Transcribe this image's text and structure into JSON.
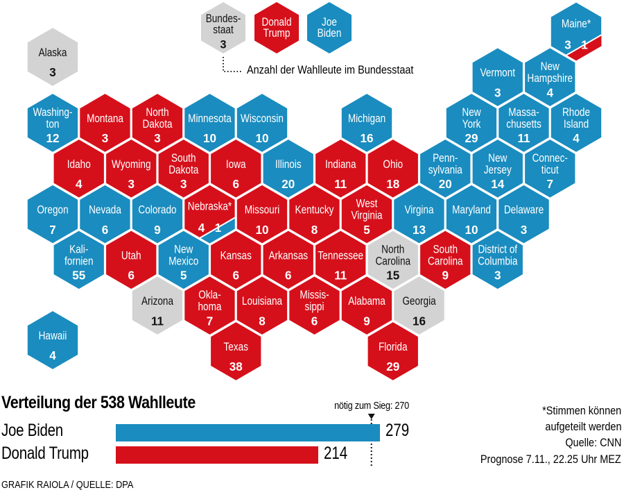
{
  "colors": {
    "trump": "#d5101b",
    "biden": "#1a8cbf",
    "open": "#d3d3d3",
    "text_light": "#ffffff",
    "text_dark": "#111111"
  },
  "legend": {
    "state": {
      "lines": [
        "Bundes-",
        "staat"
      ],
      "votes": "3"
    },
    "trump": {
      "lines": [
        "Donald",
        "Trump"
      ]
    },
    "biden": {
      "lines": [
        "Joe",
        "Biden"
      ]
    },
    "note": "Anzahl der Wahlleute im Bundesstaat"
  },
  "states": [
    {
      "id": "AK",
      "lines": [
        "Alaska"
      ],
      "votes": "3",
      "winner": "open"
    },
    {
      "id": "HI",
      "lines": [
        "Hawaii"
      ],
      "votes": "4",
      "winner": "biden"
    },
    {
      "id": "ME",
      "lines": [
        "Maine*"
      ],
      "winner": "biden",
      "split": {
        "main": "3",
        "other": "1",
        "other_winner": "trump"
      }
    },
    {
      "id": "VT",
      "lines": [
        "Vermont"
      ],
      "votes": "3",
      "winner": "biden"
    },
    {
      "id": "NH",
      "lines": [
        "New",
        "Hampshire"
      ],
      "votes": "4",
      "winner": "biden"
    },
    {
      "id": "WA",
      "lines": [
        "Washing-",
        "ton"
      ],
      "votes": "12",
      "winner": "biden"
    },
    {
      "id": "MT",
      "lines": [
        "Montana"
      ],
      "votes": "3",
      "winner": "trump"
    },
    {
      "id": "ND",
      "lines": [
        "North",
        "Dakota"
      ],
      "votes": "3",
      "winner": "trump"
    },
    {
      "id": "MN",
      "lines": [
        "Minnesota"
      ],
      "votes": "10",
      "winner": "biden"
    },
    {
      "id": "WI",
      "lines": [
        "Wisconsin"
      ],
      "votes": "10",
      "winner": "biden"
    },
    {
      "id": "MI",
      "lines": [
        "Michigan"
      ],
      "votes": "16",
      "winner": "biden"
    },
    {
      "id": "NY",
      "lines": [
        "New",
        "York"
      ],
      "votes": "29",
      "winner": "biden"
    },
    {
      "id": "MA",
      "lines": [
        "Massa-",
        "chusetts"
      ],
      "votes": "11",
      "winner": "biden"
    },
    {
      "id": "RI",
      "lines": [
        "Rhode",
        "Island"
      ],
      "votes": "4",
      "winner": "biden"
    },
    {
      "id": "ID",
      "lines": [
        "Idaho"
      ],
      "votes": "4",
      "winner": "trump"
    },
    {
      "id": "WY",
      "lines": [
        "Wyoming"
      ],
      "votes": "3",
      "winner": "trump"
    },
    {
      "id": "SD",
      "lines": [
        "South",
        "Dakota"
      ],
      "votes": "3",
      "winner": "trump"
    },
    {
      "id": "IA",
      "lines": [
        "Iowa"
      ],
      "votes": "6",
      "winner": "trump"
    },
    {
      "id": "IL",
      "lines": [
        "Illinois"
      ],
      "votes": "20",
      "winner": "biden"
    },
    {
      "id": "IN",
      "lines": [
        "Indiana"
      ],
      "votes": "11",
      "winner": "trump"
    },
    {
      "id": "OH",
      "lines": [
        "Ohio"
      ],
      "votes": "18",
      "winner": "trump"
    },
    {
      "id": "PA",
      "lines": [
        "Penn-",
        "sylvania"
      ],
      "votes": "20",
      "winner": "biden"
    },
    {
      "id": "NJ",
      "lines": [
        "New",
        "Jersey"
      ],
      "votes": "14",
      "winner": "biden"
    },
    {
      "id": "CT",
      "lines": [
        "Connec-",
        "ticut"
      ],
      "votes": "7",
      "winner": "biden"
    },
    {
      "id": "OR",
      "lines": [
        "Oregon"
      ],
      "votes": "7",
      "winner": "biden"
    },
    {
      "id": "NV",
      "lines": [
        "Nevada"
      ],
      "votes": "6",
      "winner": "biden"
    },
    {
      "id": "CO",
      "lines": [
        "Colorado"
      ],
      "votes": "9",
      "winner": "biden"
    },
    {
      "id": "NE",
      "lines": [
        "Nebraska*"
      ],
      "winner": "trump",
      "split": {
        "main": "4",
        "other": "1",
        "other_winner": "biden"
      }
    },
    {
      "id": "MO",
      "lines": [
        "Missouri"
      ],
      "votes": "10",
      "winner": "trump"
    },
    {
      "id": "KY",
      "lines": [
        "Kentucky"
      ],
      "votes": "8",
      "winner": "trump"
    },
    {
      "id": "WV",
      "lines": [
        "West",
        "Virginia"
      ],
      "votes": "5",
      "winner": "trump"
    },
    {
      "id": "VA",
      "lines": [
        "Virgina"
      ],
      "votes": "13",
      "winner": "biden"
    },
    {
      "id": "MD",
      "lines": [
        "Maryland"
      ],
      "votes": "10",
      "winner": "biden"
    },
    {
      "id": "DE",
      "lines": [
        "Delaware"
      ],
      "votes": "3",
      "winner": "biden"
    },
    {
      "id": "CA",
      "lines": [
        "Kali-",
        "fornien"
      ],
      "votes": "55",
      "winner": "biden"
    },
    {
      "id": "UT",
      "lines": [
        "Utah"
      ],
      "votes": "6",
      "winner": "trump"
    },
    {
      "id": "NM",
      "lines": [
        "New",
        "Mexico"
      ],
      "votes": "5",
      "winner": "biden"
    },
    {
      "id": "KS",
      "lines": [
        "Kansas"
      ],
      "votes": "6",
      "winner": "trump"
    },
    {
      "id": "AR",
      "lines": [
        "Arkansas"
      ],
      "votes": "6",
      "winner": "trump"
    },
    {
      "id": "TN",
      "lines": [
        "Tennessee"
      ],
      "votes": "11",
      "winner": "trump"
    },
    {
      "id": "NC",
      "lines": [
        "North",
        "Carolina"
      ],
      "votes": "15",
      "winner": "open"
    },
    {
      "id": "SC",
      "lines": [
        "South",
        "Carolina"
      ],
      "votes": "9",
      "winner": "trump"
    },
    {
      "id": "DC",
      "lines": [
        "District of",
        "Columbia"
      ],
      "votes": "3",
      "winner": "biden"
    },
    {
      "id": "AZ",
      "lines": [
        "Arizona"
      ],
      "votes": "11",
      "winner": "open"
    },
    {
      "id": "OK",
      "lines": [
        "Okla-",
        "homa"
      ],
      "votes": "7",
      "winner": "trump"
    },
    {
      "id": "LA",
      "lines": [
        "Louisiana"
      ],
      "votes": "8",
      "winner": "trump"
    },
    {
      "id": "MS",
      "lines": [
        "Missis-",
        "sippi"
      ],
      "votes": "6",
      "winner": "trump"
    },
    {
      "id": "AL",
      "lines": [
        "Alabama"
      ],
      "votes": "9",
      "winner": "trump"
    },
    {
      "id": "GA",
      "lines": [
        "Georgia"
      ],
      "votes": "16",
      "winner": "open"
    },
    {
      "id": "TX",
      "lines": [
        "Texas"
      ],
      "votes": "38",
      "winner": "trump"
    },
    {
      "id": "FL",
      "lines": [
        "Florida"
      ],
      "votes": "29",
      "winner": "trump"
    }
  ],
  "results": {
    "title": "Verteilung der 538 Wahlleute",
    "needed_label": "nötig zum Sieg: 270",
    "needed": 270,
    "total": 538,
    "candidates": [
      {
        "name": "Joe Biden",
        "votes": 279,
        "votes_label": "279",
        "party": "biden"
      },
      {
        "name": "Donald Trump",
        "votes": 214,
        "votes_label": "214",
        "party": "trump"
      }
    ]
  },
  "notes": [
    "*Stimmen können",
    "aufgeteilt werden",
    "Quelle: CNN",
    "Prognose 7.11., 22.25 Uhr MEZ"
  ],
  "credit": "GRAFIK RAIOLA / QUELLE: DPA"
}
